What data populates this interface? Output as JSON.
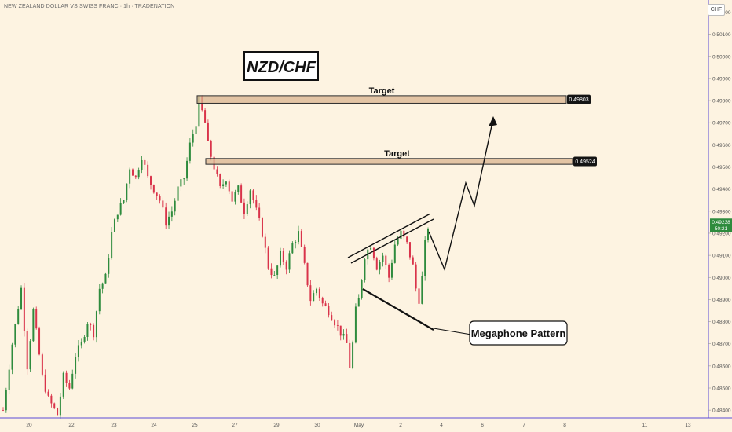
{
  "header": {
    "title": "NEW ZEALAND DOLLAR VS SWISS FRANC · 1h · TRADENATION",
    "currency": "CHF"
  },
  "colors": {
    "background": "#fdf3e1",
    "bull": "#2e8b3d",
    "bear": "#d9334a",
    "zone_fill": "#d9b48f",
    "axis_line": "#5b4bd6",
    "price_tag": "#2e8b3d"
  },
  "chart_data": {
    "type": "candlestick",
    "y_ticks": [
      "0.50200",
      "0.50100",
      "0.50000",
      "0.49900",
      "0.49800",
      "0.49700",
      "0.49600",
      "0.49500",
      "0.49400",
      "0.49300",
      "0.49200",
      "0.49100",
      "0.49000",
      "0.48900",
      "0.48800",
      "0.48700",
      "0.48600",
      "0.48500",
      "0.48400"
    ],
    "ylim": [
      0.48365,
      0.50255
    ],
    "x_ticks": [
      "20",
      "22",
      "23",
      "24",
      "25",
      "27",
      "29",
      "30",
      "May",
      "2",
      "4",
      "6",
      "7",
      "8",
      "11",
      "13"
    ],
    "current_price": "0.49238",
    "countdown": "50:21",
    "zones": [
      {
        "label": "Target",
        "price_label": "0.49803",
        "low": 0.49788,
        "high": 0.49822
      },
      {
        "label": "Target",
        "price_label": "0.49524",
        "low": 0.49512,
        "high": 0.49538
      }
    ],
    "annotations": {
      "title_box": "NZD/CHF",
      "pattern_label": "Megaphone Pattern"
    },
    "candle_path": [
      [
        0,
        0.484
      ],
      [
        3,
        0.487
      ],
      [
        6,
        0.4895
      ],
      [
        8,
        0.486
      ],
      [
        10,
        0.4885
      ],
      [
        13,
        0.4855
      ],
      [
        15,
        0.4845
      ],
      [
        18,
        0.4838
      ],
      [
        20,
        0.4855
      ],
      [
        22,
        0.485
      ],
      [
        24,
        0.4865
      ],
      [
        26,
        0.487
      ],
      [
        28,
        0.488
      ],
      [
        30,
        0.4875
      ],
      [
        32,
        0.4895
      ],
      [
        34,
        0.49
      ],
      [
        36,
        0.492
      ],
      [
        38,
        0.493
      ],
      [
        40,
        0.4935
      ],
      [
        42,
        0.495
      ],
      [
        44,
        0.4945
      ],
      [
        46,
        0.4955
      ],
      [
        48,
        0.4945
      ],
      [
        50,
        0.494
      ],
      [
        52,
        0.4935
      ],
      [
        54,
        0.4925
      ],
      [
        56,
        0.493
      ],
      [
        58,
        0.494
      ],
      [
        60,
        0.4945
      ],
      [
        62,
        0.496
      ],
      [
        64,
        0.497
      ],
      [
        65,
        0.498
      ],
      [
        66,
        0.4975
      ],
      [
        67,
        0.497
      ],
      [
        68,
        0.496
      ],
      [
        70,
        0.495
      ],
      [
        72,
        0.494
      ],
      [
        74,
        0.4945
      ],
      [
        76,
        0.4935
      ],
      [
        78,
        0.494
      ],
      [
        80,
        0.493
      ],
      [
        82,
        0.494
      ],
      [
        84,
        0.493
      ],
      [
        86,
        0.492
      ],
      [
        88,
        0.4905
      ],
      [
        90,
        0.49
      ],
      [
        92,
        0.491
      ],
      [
        94,
        0.4905
      ],
      [
        96,
        0.4915
      ],
      [
        98,
        0.492
      ],
      [
        100,
        0.4905
      ],
      [
        102,
        0.489
      ],
      [
        104,
        0.4895
      ],
      [
        106,
        0.4888
      ],
      [
        108,
        0.4885
      ],
      [
        110,
        0.488
      ],
      [
        112,
        0.4875
      ],
      [
        114,
        0.487
      ],
      [
        115,
        0.486
      ],
      [
        116,
        0.487
      ],
      [
        117,
        0.4885
      ],
      [
        118,
        0.489
      ],
      [
        119,
        0.49
      ],
      [
        120,
        0.491
      ],
      [
        122,
        0.4915
      ],
      [
        124,
        0.4905
      ],
      [
        126,
        0.491
      ],
      [
        128,
        0.49
      ],
      [
        130,
        0.4915
      ],
      [
        132,
        0.492
      ],
      [
        134,
        0.4915
      ],
      [
        136,
        0.4905
      ],
      [
        137,
        0.4895
      ],
      [
        138,
        0.489
      ],
      [
        139,
        0.49
      ],
      [
        140,
        0.4915
      ],
      [
        141,
        0.4923
      ]
    ]
  }
}
